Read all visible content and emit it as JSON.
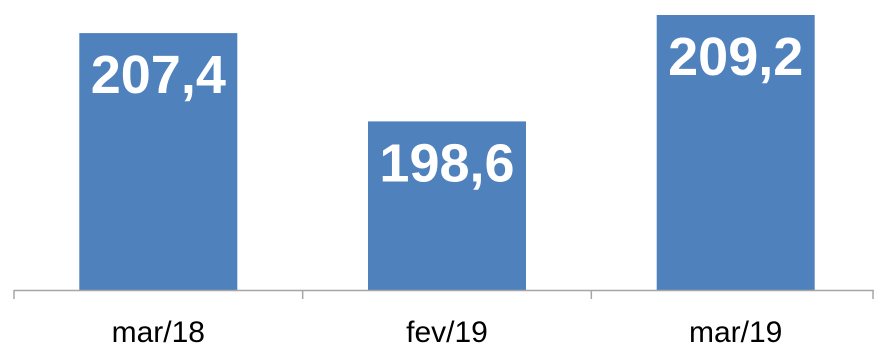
{
  "chart_data": {
    "type": "bar",
    "categories": [
      "mar/18",
      "fev/19",
      "mar/19"
    ],
    "values": [
      207.4,
      198.6,
      209.2
    ],
    "value_labels": [
      "207,4",
      "198,6",
      "209,2"
    ],
    "title": "",
    "xlabel": "",
    "ylabel": "",
    "grid": false,
    "legend": "none",
    "colors": {
      "bar": "#4f81bd",
      "value_label": "#ffffff",
      "axis": "#a6a6a6",
      "category_label": "#000000"
    }
  }
}
